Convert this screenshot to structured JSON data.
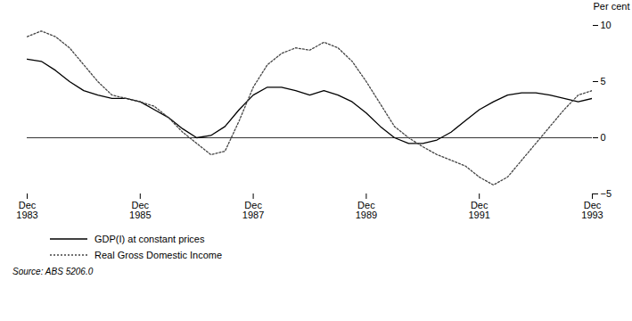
{
  "chart_data": {
    "type": "line",
    "ylabel": "Per cent",
    "caption": "Source: ABS 5206.0",
    "categories": [
      "Dec\n1983",
      null,
      null,
      null,
      null,
      null,
      null,
      null,
      "Dec\n1985",
      null,
      null,
      null,
      null,
      null,
      null,
      null,
      "Dec\n1987",
      null,
      null,
      null,
      null,
      null,
      null,
      null,
      "Dec\n1989",
      null,
      null,
      null,
      null,
      null,
      null,
      null,
      "Dec\n1991",
      null,
      null,
      null,
      null,
      null,
      null,
      null,
      "Dec\n1993"
    ],
    "ylim": [
      -5,
      10
    ],
    "yticks": [
      -5,
      0,
      5,
      10
    ],
    "grid": false,
    "series": [
      {
        "name": "GDP(I) at constant prices",
        "color": "#000000",
        "line_style": "solid",
        "values": [
          7.0,
          6.8,
          6.0,
          5.0,
          4.2,
          3.8,
          3.5,
          3.5,
          3.2,
          2.5,
          1.8,
          0.8,
          0.0,
          0.2,
          1.0,
          2.5,
          3.8,
          4.5,
          4.5,
          4.2,
          3.8,
          4.2,
          3.8,
          3.2,
          2.2,
          1.0,
          0.0,
          -0.5,
          -0.5,
          -0.2,
          0.5,
          1.5,
          2.5,
          3.2,
          3.8,
          4.0,
          4.0,
          3.8,
          3.5,
          3.2,
          3.5
        ]
      },
      {
        "name": "Real Gross Domestic Income",
        "color": "#444444",
        "line_style": "dotted",
        "values": [
          9.0,
          9.5,
          9.0,
          8.0,
          6.5,
          5.0,
          3.8,
          3.5,
          3.2,
          2.8,
          1.8,
          0.5,
          -0.5,
          -1.5,
          -1.2,
          1.5,
          4.5,
          6.5,
          7.5,
          8.0,
          7.8,
          8.5,
          8.0,
          6.8,
          5.0,
          3.0,
          1.0,
          0.0,
          -0.8,
          -1.5,
          -2.0,
          -2.5,
          -3.5,
          -4.2,
          -3.5,
          -2.0,
          -0.5,
          1.0,
          2.5,
          3.8,
          4.2
        ]
      }
    ]
  }
}
